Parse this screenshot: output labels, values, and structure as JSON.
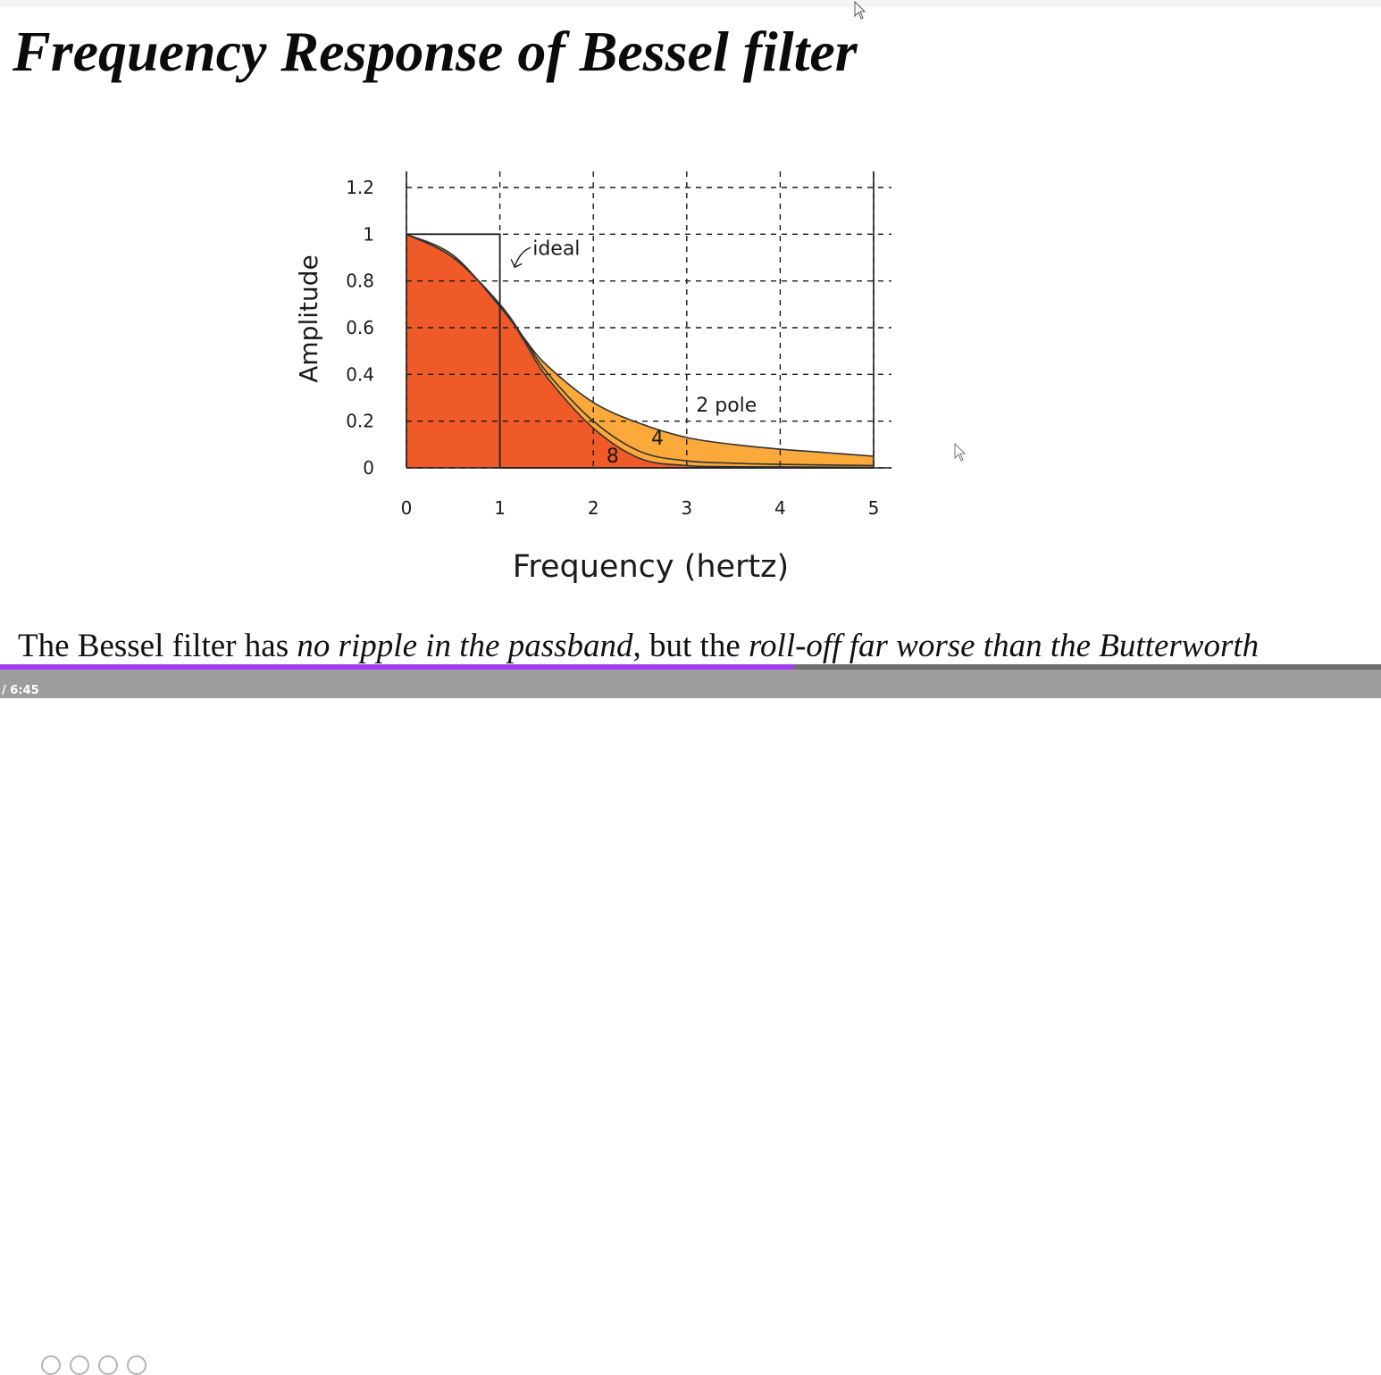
{
  "slide": {
    "title": "Frequency Response of Bessel filter",
    "caption": {
      "part1": "The Bessel filter has ",
      "part2": "no ripple in the passband",
      "part3": ", but the ",
      "part4": "roll-off far worse than the Butterworth"
    }
  },
  "player": {
    "time": "/ 6:45",
    "progress_fraction": 0.575,
    "progress_color": "#a23ff2"
  },
  "chart_data": {
    "type": "area",
    "title": "",
    "xlabel": "Frequency (hertz)",
    "ylabel": "Amplitude",
    "xlim": [
      0,
      5
    ],
    "ylim": [
      0,
      1.2
    ],
    "xticks": [
      "0",
      "1",
      "2",
      "3",
      "4",
      "5"
    ],
    "yticks": [
      "0",
      "0.2",
      "0.4",
      "0.6",
      "0.8",
      "1",
      "1.2"
    ],
    "grid": true,
    "series": [
      {
        "name": "2 pole",
        "color": "#fba93a",
        "x": [
          0,
          0.5,
          1,
          1.25,
          1.5,
          2,
          2.5,
          3,
          3.5,
          4,
          4.5,
          5
        ],
        "y": [
          1.0,
          0.91,
          0.69,
          0.56,
          0.44,
          0.28,
          0.19,
          0.13,
          0.1,
          0.08,
          0.065,
          0.05
        ]
      },
      {
        "name": "4",
        "color": "#333333",
        "x": [
          0,
          0.5,
          1,
          1.25,
          1.5,
          2,
          2.5,
          3,
          3.5,
          4,
          4.5,
          5
        ],
        "y": [
          1.0,
          0.9,
          0.7,
          0.56,
          0.41,
          0.2,
          0.07,
          0.03,
          0.02,
          0.015,
          0.012,
          0.01
        ]
      },
      {
        "name": "8",
        "color": "#f05a28",
        "x": [
          0,
          0.5,
          1,
          1.25,
          1.5,
          2,
          2.5,
          3,
          3.5,
          4,
          4.5,
          5
        ],
        "y": [
          1.0,
          0.9,
          0.7,
          0.55,
          0.39,
          0.17,
          0.04,
          0.01,
          0.005,
          0.004,
          0.003,
          0.002
        ]
      },
      {
        "name": "ideal",
        "color": "#222222",
        "x": [
          0,
          1,
          1,
          5
        ],
        "y": [
          1,
          1,
          0,
          0
        ]
      }
    ]
  }
}
